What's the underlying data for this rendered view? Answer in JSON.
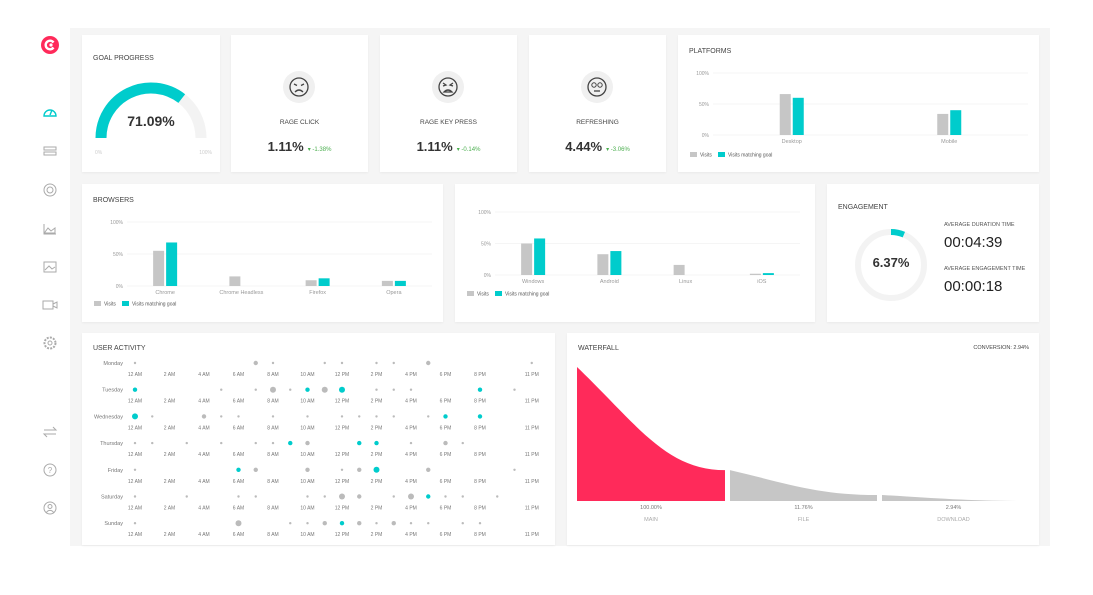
{
  "colors": {
    "accent": "#00cccc",
    "brand": "#ff2a5a",
    "visits": "#c6c6c6"
  },
  "sidebar": {
    "items": [
      {
        "icon": "dashboard-icon",
        "active": true
      },
      {
        "icon": "list-icon"
      },
      {
        "icon": "target-icon"
      },
      {
        "icon": "area-chart-icon"
      },
      {
        "icon": "image-icon"
      },
      {
        "icon": "video-icon"
      },
      {
        "icon": "gear-icon"
      },
      {
        "icon": "swap-icon"
      },
      {
        "icon": "help-icon"
      },
      {
        "icon": "user-icon"
      }
    ]
  },
  "goal": {
    "title": "GOAL PROGRESS",
    "value": "71.09%",
    "percent": 71.09,
    "min": "0%",
    "max": "100%"
  },
  "metrics": [
    {
      "icon": "angry-face-icon",
      "label": "RAGE CLICK",
      "value": "1.11%",
      "delta": "-1.38%"
    },
    {
      "icon": "furious-face-icon",
      "label": "RAGE KEY PRESS",
      "value": "1.11%",
      "delta": "-0.14%"
    },
    {
      "icon": "rolling-eyes-face-icon",
      "label": "REFRESHING",
      "value": "4.44%",
      "delta": "-3.06%"
    }
  ],
  "legend": {
    "visits": "Visits",
    "goal": "Visits matching goal"
  },
  "chart_data": [
    {
      "type": "bar",
      "title": "PLATFORMS",
      "ylim": [
        0,
        100
      ],
      "yticks": [
        "0%",
        "50%",
        "100%"
      ],
      "categories": [
        "Desktop",
        "Mobile"
      ],
      "series": [
        {
          "name": "Visits",
          "values": [
            66,
            34
          ]
        },
        {
          "name": "Visits matching goal",
          "values": [
            60,
            40
          ]
        }
      ]
    },
    {
      "type": "bar",
      "title": "BROWSERS",
      "ylim": [
        0,
        100
      ],
      "yticks": [
        "0%",
        "50%",
        "100%"
      ],
      "categories": [
        "Chrome",
        "Chrome Headless",
        "Firefox",
        "Opera"
      ],
      "series": [
        {
          "name": "Visits",
          "values": [
            55,
            15,
            9,
            8
          ]
        },
        {
          "name": "Visits matching goal",
          "values": [
            68,
            0,
            12,
            8
          ]
        }
      ]
    },
    {
      "type": "bar",
      "title": "",
      "ylim": [
        0,
        100
      ],
      "yticks": [
        "0%",
        "50%",
        "100%"
      ],
      "categories": [
        "Windows",
        "Android",
        "Linux",
        "iOS"
      ],
      "series": [
        {
          "name": "Visits",
          "values": [
            50,
            33,
            16,
            2
          ]
        },
        {
          "name": "Visits matching goal",
          "values": [
            58,
            38,
            0,
            3
          ]
        }
      ]
    }
  ],
  "engagement": {
    "title": "ENGAGEMENT",
    "value": "6.37%",
    "percent": 6.37,
    "avg_duration_label": "AVERAGE DURATION TIME",
    "avg_duration": "00:04:39",
    "avg_engagement_label": "AVERAGE ENGAGEMENT TIME",
    "avg_engagement": "00:00:18"
  },
  "activity": {
    "title": "USER ACTIVITY",
    "hour_labels": [
      {
        "h": 0,
        "t": "12 AM"
      },
      {
        "h": 2,
        "t": "2 AM"
      },
      {
        "h": 4,
        "t": "4 AM"
      },
      {
        "h": 6,
        "t": "6 AM"
      },
      {
        "h": 8,
        "t": "8 AM"
      },
      {
        "h": 10,
        "t": "10 AM"
      },
      {
        "h": 12,
        "t": "12 PM"
      },
      {
        "h": 14,
        "t": "2 PM"
      },
      {
        "h": 16,
        "t": "4 PM"
      },
      {
        "h": 18,
        "t": "6 PM"
      },
      {
        "h": 20,
        "t": "8 PM"
      },
      {
        "h": 23,
        "t": "11 PM"
      }
    ],
    "days": [
      {
        "day": "Monday",
        "dots": [
          [
            0,
            1,
            0
          ],
          [
            7,
            2,
            0
          ],
          [
            8,
            1,
            0
          ],
          [
            11,
            1,
            0
          ],
          [
            12,
            1,
            0
          ],
          [
            14,
            1,
            0
          ],
          [
            15,
            1,
            0
          ],
          [
            17,
            2,
            0
          ],
          [
            23,
            1,
            0
          ]
        ]
      },
      {
        "day": "Tuesday",
        "dots": [
          [
            0,
            2,
            1
          ],
          [
            5,
            1,
            0
          ],
          [
            7,
            1,
            0
          ],
          [
            8,
            3,
            0
          ],
          [
            9,
            1,
            0
          ],
          [
            10,
            2,
            1
          ],
          [
            11,
            3,
            0
          ],
          [
            12,
            3,
            1
          ],
          [
            14,
            1,
            0
          ],
          [
            15,
            1,
            0
          ],
          [
            16,
            1,
            0
          ],
          [
            20,
            2,
            1
          ],
          [
            22,
            1,
            0
          ]
        ]
      },
      {
        "day": "Wednesday",
        "dots": [
          [
            0,
            3,
            1
          ],
          [
            1,
            1,
            0
          ],
          [
            4,
            2,
            0
          ],
          [
            5,
            1,
            0
          ],
          [
            6,
            1,
            0
          ],
          [
            8,
            1,
            0
          ],
          [
            10,
            1,
            0
          ],
          [
            12,
            1,
            0
          ],
          [
            13,
            1,
            0
          ],
          [
            14,
            1,
            0
          ],
          [
            15,
            1,
            0
          ],
          [
            17,
            1,
            0
          ],
          [
            18,
            2,
            1
          ],
          [
            20,
            2,
            1
          ]
        ]
      },
      {
        "day": "Thursday",
        "dots": [
          [
            0,
            1,
            0
          ],
          [
            1,
            1,
            0
          ],
          [
            3,
            1,
            0
          ],
          [
            5,
            1,
            0
          ],
          [
            7,
            1,
            0
          ],
          [
            8,
            1,
            0
          ],
          [
            9,
            2,
            1
          ],
          [
            10,
            2,
            0
          ],
          [
            13,
            2,
            1
          ],
          [
            14,
            2,
            1
          ],
          [
            16,
            1,
            0
          ],
          [
            18,
            2,
            0
          ],
          [
            19,
            1,
            0
          ]
        ]
      },
      {
        "day": "Friday",
        "dots": [
          [
            0,
            1,
            0
          ],
          [
            6,
            2,
            1
          ],
          [
            7,
            2,
            0
          ],
          [
            10,
            2,
            0
          ],
          [
            12,
            1,
            0
          ],
          [
            13,
            2,
            0
          ],
          [
            14,
            3,
            1
          ],
          [
            17,
            2,
            0
          ],
          [
            22,
            1,
            0
          ]
        ]
      },
      {
        "day": "Saturday",
        "dots": [
          [
            0,
            1,
            0
          ],
          [
            3,
            1,
            0
          ],
          [
            6,
            1,
            0
          ],
          [
            7,
            1,
            0
          ],
          [
            10,
            1,
            0
          ],
          [
            11,
            1,
            0
          ],
          [
            12,
            3,
            0
          ],
          [
            13,
            2,
            0
          ],
          [
            15,
            1,
            0
          ],
          [
            16,
            3,
            0
          ],
          [
            17,
            2,
            1
          ],
          [
            18,
            1,
            0
          ],
          [
            19,
            1,
            0
          ],
          [
            21,
            1,
            0
          ]
        ]
      },
      {
        "day": "Sunday",
        "dots": [
          [
            0,
            1,
            0
          ],
          [
            6,
            3,
            0
          ],
          [
            9,
            1,
            0
          ],
          [
            10,
            1,
            0
          ],
          [
            11,
            2,
            0
          ],
          [
            12,
            2,
            1
          ],
          [
            13,
            2,
            0
          ],
          [
            14,
            1,
            0
          ],
          [
            15,
            2,
            0
          ],
          [
            16,
            1,
            0
          ],
          [
            17,
            1,
            0
          ],
          [
            19,
            1,
            0
          ],
          [
            20,
            1,
            0
          ]
        ]
      }
    ]
  },
  "waterfall": {
    "title": "WATERFALL",
    "conversion": "CONVERSION: 2.94%",
    "steps": [
      {
        "name": "MAIN",
        "value": "100.00%",
        "pct": 100
      },
      {
        "name": "FILE",
        "value": "11.76%",
        "pct": 11.76
      },
      {
        "name": "DOWNLOAD",
        "value": "2.94%",
        "pct": 2.94
      }
    ]
  }
}
